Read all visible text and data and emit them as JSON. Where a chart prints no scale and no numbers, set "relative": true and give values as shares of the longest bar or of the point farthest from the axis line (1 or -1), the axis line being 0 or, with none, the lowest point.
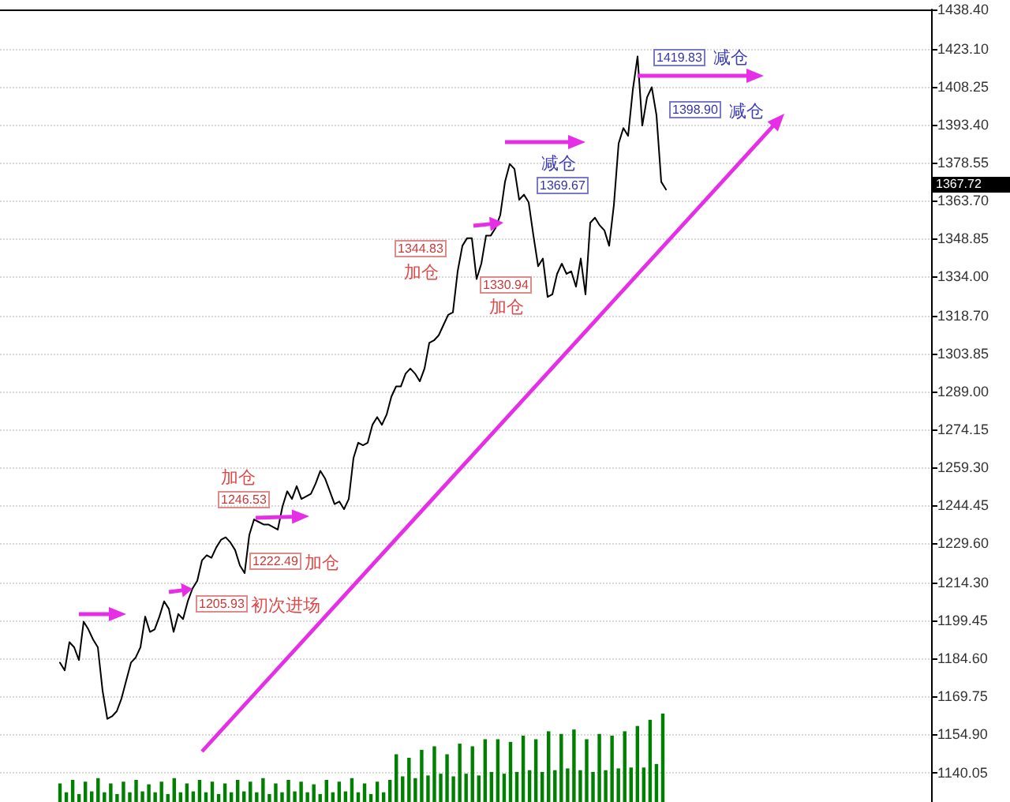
{
  "chart_data": [
    {
      "type": "line",
      "categories": [
        null,
        null,
        null,
        null,
        null,
        null,
        null,
        null,
        null,
        null,
        null,
        null,
        null,
        null,
        null,
        null,
        null,
        null,
        null,
        null,
        null,
        null,
        null,
        null,
        null,
        null,
        null,
        null,
        null,
        null,
        null,
        null,
        null,
        null,
        null,
        null,
        null,
        null,
        null,
        null,
        null,
        null,
        null,
        null,
        null,
        null,
        null,
        null,
        null,
        null,
        null,
        null,
        null,
        null,
        null,
        null,
        null,
        null,
        null,
        null,
        null,
        null,
        null,
        null,
        null,
        null,
        null,
        null,
        null,
        null,
        null,
        null,
        null,
        null,
        null,
        null,
        null,
        null,
        null,
        null,
        null,
        null,
        null,
        null,
        null,
        null,
        null,
        null,
        null,
        null,
        null,
        null,
        null,
        null,
        null,
        null,
        null,
        null,
        null,
        null,
        null,
        null,
        null,
        null,
        null,
        null,
        null,
        null,
        null,
        null,
        null,
        null,
        null,
        null,
        null,
        null,
        null,
        null,
        null,
        null,
        null,
        null,
        null,
        null,
        null,
        null,
        null,
        null,
        null
      ],
      "values": [
        1183,
        1180,
        1191,
        1189,
        1184,
        1199,
        1196,
        1192,
        1189,
        1172,
        1161,
        1162,
        1164,
        1169,
        1176,
        1183,
        1185,
        1189,
        1201,
        1195,
        1196,
        1201,
        1207,
        1204,
        1195,
        1202,
        1200,
        1207,
        1212,
        1215,
        1223,
        1225,
        1224,
        1228,
        1231,
        1232,
        1230,
        1227,
        1221,
        1218,
        1233,
        1239,
        1238,
        1237,
        1237,
        1236,
        1235,
        1244,
        1250,
        1247,
        1252,
        1247,
        1248,
        1249,
        1253,
        1258,
        1255,
        1250,
        1245,
        1246,
        1243,
        1247,
        1263,
        1269,
        1268,
        1269,
        1276,
        1279,
        1276,
        1280,
        1287,
        1291,
        1291,
        1296,
        1298,
        1296,
        1293,
        1298,
        1308,
        1309,
        1311,
        1315,
        1319,
        1320,
        1336,
        1346,
        1349,
        1349,
        1333,
        1339,
        1350,
        1350,
        1353,
        1358,
        1371,
        1378,
        1376,
        1364,
        1366,
        1363,
        1350,
        1338,
        1341,
        1326,
        1327,
        1335,
        1339,
        1335,
        1336,
        1330,
        1341,
        1327,
        1355,
        1357,
        1354,
        1352,
        1346,
        1362,
        1386,
        1392,
        1389,
        1407,
        1420,
        1393,
        1404,
        1408,
        1397,
        1371,
        1368
      ],
      "color": "#000000",
      "marker": "none",
      "grid": "y",
      "tick_labels": "y",
      "ylim": [
        1128.5,
        1438.4
      ],
      "yticks": [
        {
          "value": 1438.4,
          "label": "1438.40"
        },
        {
          "value": 1423.1,
          "label": "1423.10"
        },
        1408.25,
        {
          "value": 1393.4,
          "label": "1393.40"
        },
        1378.55,
        {
          "value": 1363.7,
          "label": "1363.70"
        },
        1348.85,
        {
          "value": 1334,
          "label": "1334.00"
        },
        {
          "value": 1318.7,
          "label": "1318.70"
        },
        1303.85,
        {
          "value": 1289,
          "label": "1289.00"
        },
        1274.15,
        {
          "value": 1259.3,
          "label": "1259.30"
        },
        1244.45,
        {
          "value": 1229.6,
          "label": "1229.60"
        },
        {
          "value": 1214.3,
          "label": "1214.30"
        },
        1199.45,
        {
          "value": 1184.6,
          "label": "1184.60"
        },
        1169.75,
        {
          "value": 1154.9,
          "label": "1154.90"
        },
        {
          "value": 1140.05,
          "label": "1140.05"
        }
      ],
      "annotations": [
        {
          "text": "1205.93",
          "y": 1205.93
        },
        "初次进场",
        {
          "text": "1222.49",
          "y": 1222.49
        },
        "加仓",
        {
          "text": "1246.53",
          "y": 1246.53
        },
        "加仓",
        {
          "text": "1344.83",
          "y": 1344.83
        },
        "加仓",
        {
          "text": "1369.67",
          "y": 1369.67
        },
        "减仓",
        {
          "text": "1330.94",
          "y": 1330.94
        },
        "加仓",
        {
          "text": "1419.83",
          "y": 1419.83
        },
        "减仓",
        {
          "text": "1398.90",
          "y": 1398.9
        },
        "减仓",
        "1367.72"
      ]
    },
    {
      "type": "bar",
      "categories": [
        null,
        null,
        null,
        null,
        null,
        null,
        null,
        null,
        null,
        null,
        null,
        null,
        null,
        null,
        null,
        null,
        null,
        null,
        null,
        null,
        null,
        null,
        null,
        null,
        null,
        null,
        null,
        null,
        null,
        null,
        null,
        null,
        null,
        null,
        null,
        null,
        null,
        null,
        null,
        null,
        null,
        null,
        null,
        null,
        null,
        null,
        null,
        null,
        null,
        null,
        null,
        null,
        null,
        null,
        null,
        null,
        null,
        null,
        null,
        null,
        null,
        null,
        null,
        null,
        null,
        null,
        null,
        null,
        null,
        null,
        null,
        null,
        null,
        null,
        null,
        null,
        null,
        null,
        null,
        null,
        null,
        null,
        null,
        null,
        null,
        null,
        null,
        null,
        null,
        null,
        null,
        null,
        null,
        null,
        null,
        null
      ],
      "values": [
        0.21,
        0.11,
        0.25,
        0.09,
        0.23,
        0.12,
        0.27,
        0.11,
        0.21,
        0.09,
        0.23,
        0.11,
        0.25,
        0.12,
        0.2,
        0.11,
        0.23,
        0.09,
        0.27,
        0.11,
        0.21,
        0.12,
        0.25,
        0.11,
        0.23,
        0.09,
        0.21,
        0.11,
        0.25,
        0.12,
        0.23,
        0.11,
        0.27,
        0.09,
        0.21,
        0.11,
        0.25,
        0.12,
        0.23,
        0.11,
        0.2,
        0.09,
        0.25,
        0.11,
        0.23,
        0.12,
        0.27,
        0.11,
        0.21,
        0.09,
        0.23,
        0.11,
        0.25,
        0.54,
        0.29,
        0.5,
        0.27,
        0.59,
        0.3,
        0.63,
        0.32,
        0.54,
        0.29,
        0.66,
        0.32,
        0.63,
        0.3,
        0.71,
        0.34,
        0.71,
        0.32,
        0.68,
        0.34,
        0.75,
        0.36,
        0.71,
        0.34,
        0.8,
        0.36,
        0.77,
        0.38,
        0.82,
        0.36,
        0.71,
        0.34,
        0.77,
        0.36,
        0.75,
        0.38,
        0.8,
        0.39,
        0.86,
        0.39,
        0.93,
        0.43,
        1
      ],
      "color": "#008000",
      "relative": true,
      "tick_labels": false
    }
  ]
}
